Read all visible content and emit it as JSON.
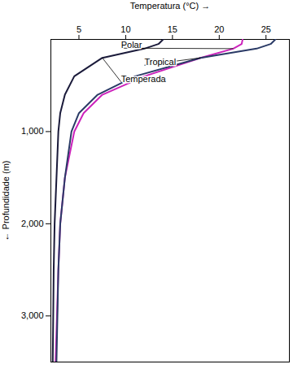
{
  "chart_data": {
    "type": "line",
    "xlabel": "Temperatura (°C)",
    "ylabel": "Profundidade (m)",
    "xlim": [
      2,
      27.5
    ],
    "ylim": [
      3500,
      0
    ],
    "xticks": [
      5,
      10,
      15,
      20,
      25
    ],
    "yticks": [
      {
        "value": 1000,
        "label": "1,000"
      },
      {
        "value": 2000,
        "label": "2,000"
      },
      {
        "value": 3000,
        "label": "3,000"
      }
    ],
    "grid": false,
    "series": [
      {
        "name": "Polar",
        "color": "#CC22BB",
        "x": [
          22.5,
          22.4,
          21.5,
          18.0,
          12.0,
          7.5,
          5.5,
          4.5,
          3.5,
          3.0,
          2.8,
          2.5
        ],
        "y": [
          0,
          50,
          100,
          200,
          400,
          600,
          800,
          1000,
          1500,
          2000,
          2500,
          3500
        ]
      },
      {
        "name": "Tropical",
        "color": "#2A3A66",
        "x": [
          26.0,
          25.5,
          24.0,
          18.0,
          11.0,
          7.0,
          5.0,
          4.2,
          3.5,
          3.0,
          2.8,
          2.6
        ],
        "y": [
          0,
          50,
          100,
          200,
          400,
          600,
          800,
          1000,
          1500,
          2000,
          2500,
          3500
        ]
      },
      {
        "name": "Temperada",
        "color": "#1A1A3A",
        "x": [
          14.0,
          13.5,
          12.0,
          7.5,
          4.5,
          3.5,
          3.0,
          2.8,
          2.6,
          2.4,
          2.3,
          2.2
        ],
        "y": [
          0,
          50,
          100,
          200,
          400,
          600,
          800,
          1000,
          1500,
          2000,
          2500,
          3500
        ]
      }
    ],
    "annotations": [
      {
        "text": "Polar",
        "x": 21.5,
        "y": 100,
        "text_x": 9.5,
        "text_y": 95
      },
      {
        "text": "Tropical",
        "x": 18.0,
        "y": 200,
        "text_x": 12.0,
        "text_y": 280
      },
      {
        "text": "Temperada",
        "x": 7.5,
        "y": 200,
        "text_x": 9.5,
        "text_y": 460
      }
    ]
  }
}
